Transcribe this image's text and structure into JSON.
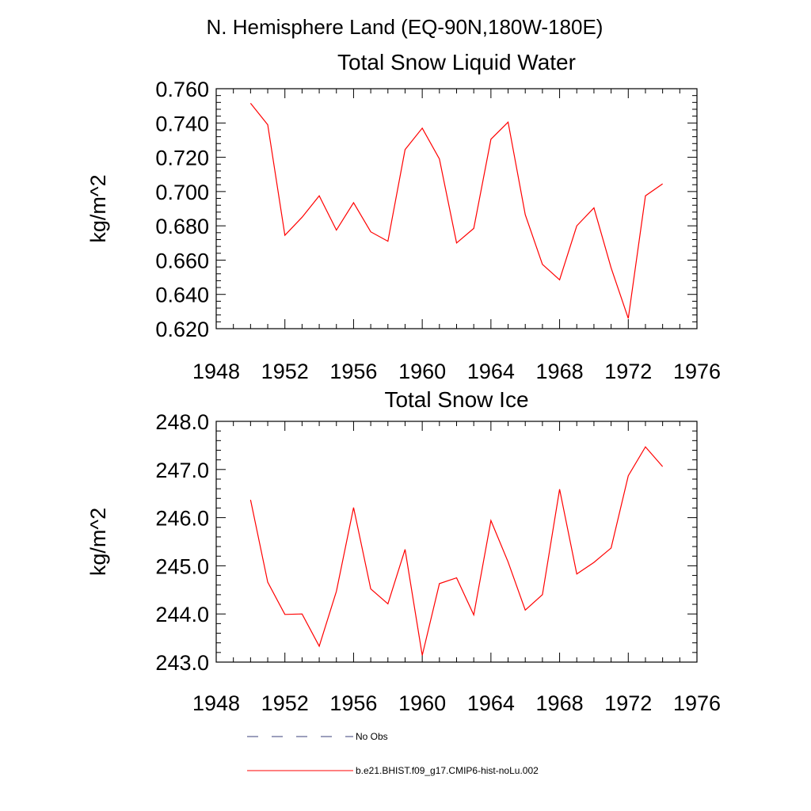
{
  "figure_title": "N. Hemisphere Land (EQ-90N,180W-180E)",
  "chart_data": [
    {
      "type": "line",
      "title": "Total Snow Liquid Water",
      "xlabel": "",
      "ylabel": "kg/m^2",
      "xlim": [
        1948,
        1976
      ],
      "ylim": [
        0.62,
        0.76
      ],
      "x_ticks": [
        1948,
        1952,
        1956,
        1960,
        1964,
        1968,
        1972,
        1976
      ],
      "y_ticks": [
        0.62,
        0.64,
        0.66,
        0.68,
        0.7,
        0.72,
        0.74,
        0.76
      ],
      "y_tick_labels": [
        "0.620",
        "0.640",
        "0.660",
        "0.680",
        "0.700",
        "0.720",
        "0.740",
        "0.760"
      ],
      "grid": false,
      "series": [
        {
          "name": "b.e21.BHIST.f09_g17.CMIP6-hist-noLu.002",
          "color": "#ff0000",
          "x": [
            1950,
            1951,
            1952,
            1953,
            1954,
            1955,
            1956,
            1957,
            1958,
            1959,
            1960,
            1961,
            1962,
            1963,
            1964,
            1965,
            1966,
            1967,
            1968,
            1969,
            1970,
            1971,
            1972,
            1973,
            1974
          ],
          "values": [
            0.7515,
            0.739,
            0.6745,
            0.685,
            0.6975,
            0.6775,
            0.6935,
            0.6765,
            0.671,
            0.7245,
            0.737,
            0.719,
            0.67,
            0.6785,
            0.7305,
            0.7405,
            0.6865,
            0.6575,
            0.6485,
            0.68,
            0.6905,
            0.6555,
            0.626,
            0.6975,
            0.7045
          ]
        }
      ]
    },
    {
      "type": "line",
      "title": "Total Snow Ice",
      "xlabel": "",
      "ylabel": "kg/m^2",
      "xlim": [
        1948,
        1976
      ],
      "ylim": [
        243.0,
        248.0
      ],
      "x_ticks": [
        1948,
        1952,
        1956,
        1960,
        1964,
        1968,
        1972,
        1976
      ],
      "y_ticks": [
        243.0,
        244.0,
        245.0,
        246.0,
        247.0,
        248.0
      ],
      "y_tick_labels": [
        "243.0",
        "244.0",
        "245.0",
        "246.0",
        "247.0",
        "248.0"
      ],
      "grid": false,
      "series": [
        {
          "name": "b.e21.BHIST.f09_g17.CMIP6-hist-noLu.002",
          "color": "#ff0000",
          "x": [
            1950,
            1951,
            1952,
            1953,
            1954,
            1955,
            1956,
            1957,
            1958,
            1959,
            1960,
            1961,
            1962,
            1963,
            1964,
            1965,
            1966,
            1967,
            1968,
            1969,
            1970,
            1971,
            1972,
            1973,
            1974
          ],
          "values": [
            246.37,
            244.66,
            243.99,
            244.0,
            243.33,
            244.47,
            246.21,
            244.52,
            244.21,
            245.34,
            243.14,
            244.63,
            244.75,
            243.98,
            245.94,
            245.08,
            244.08,
            244.4,
            246.59,
            244.83,
            245.07,
            245.37,
            246.87,
            247.47,
            247.06
          ]
        }
      ]
    }
  ],
  "legend": {
    "placement": "bottom",
    "entries": [
      {
        "label": "No Obs",
        "style": "dashed",
        "color": "#3a3f7a"
      },
      {
        "label": "b.e21.BHIST.f09_g17.CMIP6-hist-noLu.002",
        "style": "solid",
        "color": "#ff0000"
      }
    ]
  }
}
